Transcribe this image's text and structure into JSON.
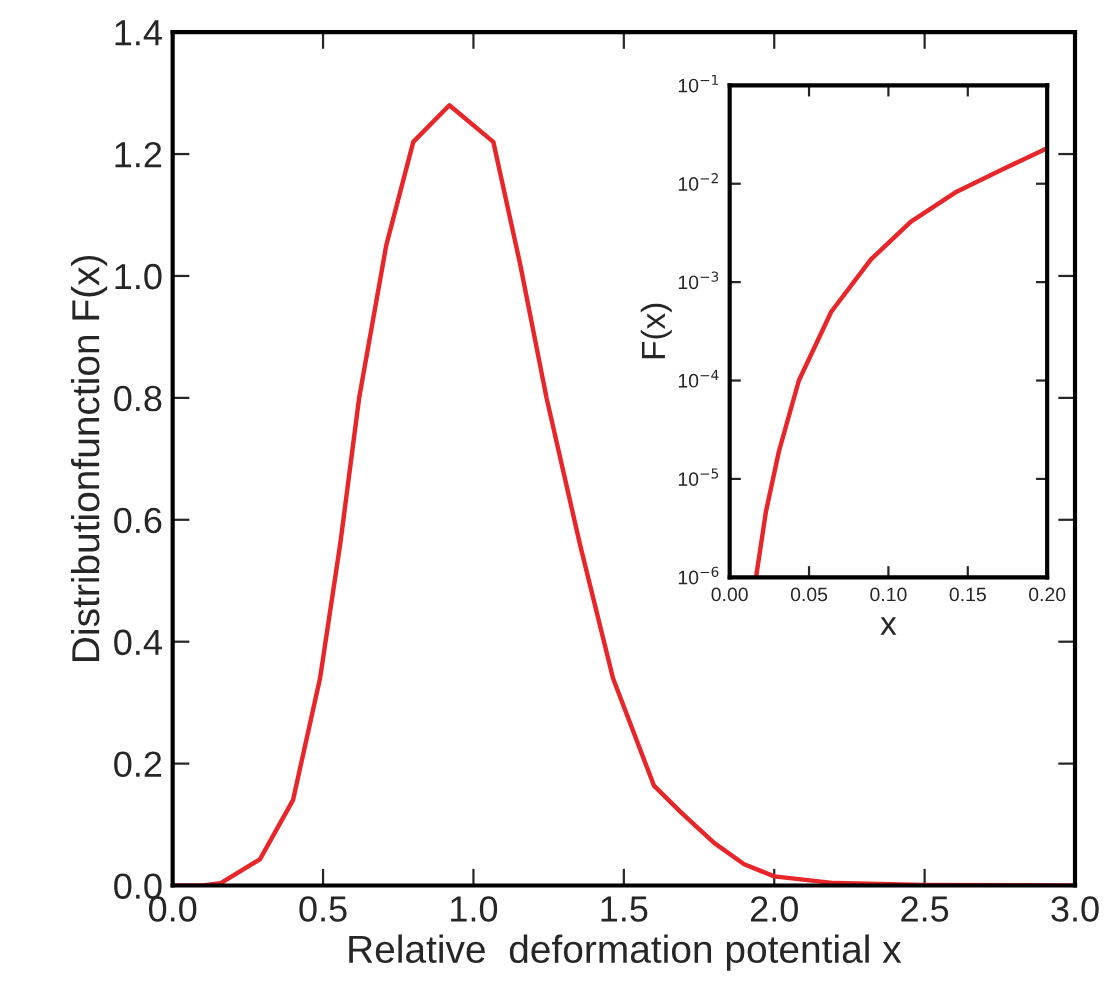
{
  "chart_data": [
    {
      "type": "line",
      "xlabel": "Relative  deformation potential x",
      "ylabel": "Distributionfunction F(x)",
      "x": [
        0.0,
        0.1,
        0.16,
        0.29,
        0.4,
        0.49,
        0.557,
        0.62,
        0.71,
        0.8,
        0.92,
        1.066,
        1.155,
        1.243,
        1.354,
        1.464,
        1.6,
        1.69,
        1.8,
        1.9,
        2.0,
        2.2,
        2.5,
        3.0
      ],
      "series": [
        {
          "color": "#e8262a",
          "values": [
            0.0,
            0.0,
            0.004,
            0.043,
            0.14,
            0.34,
            0.56,
            0.8,
            1.05,
            1.22,
            1.28,
            1.22,
            1.02,
            0.8,
            0.56,
            0.34,
            0.164,
            0.12,
            0.07,
            0.035,
            0.015,
            0.004,
            0.001,
            0.0
          ]
        }
      ],
      "xlim": [
        0,
        3
      ],
      "ylim": [
        0,
        1.4
      ],
      "xticks": [
        {
          "value": 0,
          "label": "0.0"
        },
        0.5,
        {
          "value": 1,
          "label": "1.0"
        },
        1.5,
        {
          "value": 2,
          "label": "2.0"
        },
        2.5,
        {
          "value": 3,
          "label": "3.0"
        }
      ],
      "yticks": [
        {
          "value": 0,
          "label": "0.0"
        },
        0.2,
        0.4,
        0.6,
        0.8,
        {
          "value": 1,
          "label": "1.0"
        },
        1.2,
        1.4
      ],
      "grid": false,
      "legend": false
    },
    {
      "type": "line",
      "xlabel": "x",
      "ylabel": "F(x)",
      "log": "y",
      "x": [
        0.0166,
        0.0228,
        0.031,
        0.0436,
        0.064,
        0.089,
        0.114,
        0.143,
        0.172,
        0.2
      ],
      "series": [
        {
          "color": "#e8262a",
          "values": [
            1e-06,
            4.6e-06,
            1.9e-05,
            0.0001,
            0.0005,
            0.0017,
            0.0041,
            0.0083,
            0.014,
            0.023
          ]
        }
      ],
      "xlim": [
        0,
        0.2
      ],
      "ylim": [
        1e-06,
        0.1
      ],
      "xticks": [
        {
          "value": 0,
          "label": "0.00"
        },
        0.05,
        {
          "value": 0.1,
          "label": "0.10"
        },
        0.15,
        {
          "value": 0.2,
          "label": "0.20"
        }
      ],
      "yticks": [
        {
          "value": 1e-06,
          "label": "10$^{−6}$"
        },
        {
          "value": 1e-05,
          "label": "10$^{−5}$"
        },
        {
          "value": 0.0001,
          "label": "10$^{−4}$"
        },
        {
          "value": 0.001,
          "label": "10$^{−3}$"
        },
        {
          "value": 0.01,
          "label": "10$^{−2}$"
        },
        {
          "value": 0.1,
          "label": "10$^{−1}$"
        }
      ],
      "grid": false,
      "legend": false
    }
  ]
}
